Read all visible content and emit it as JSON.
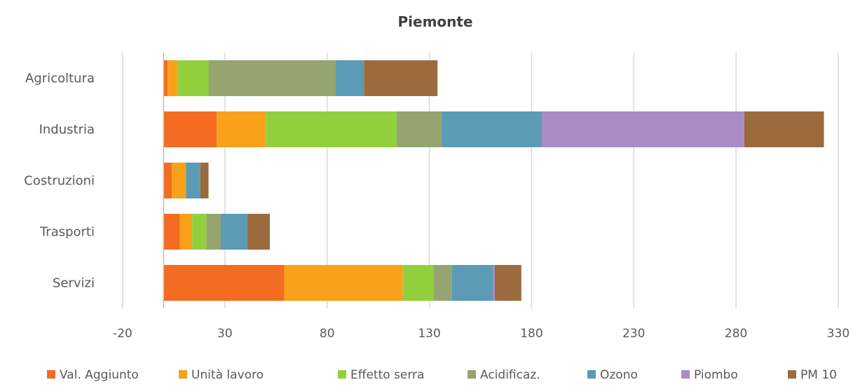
{
  "chart_data": {
    "type": "bar",
    "orientation": "horizontal",
    "stacked": true,
    "title": "Piemonte",
    "xlabel": "",
    "ylabel": "",
    "xlim": [
      -20,
      330
    ],
    "x_ticks": [
      -20,
      30,
      80,
      130,
      180,
      230,
      280,
      330
    ],
    "grid": true,
    "legend_position": "bottom",
    "categories": [
      "Agricoltura",
      "Industria",
      "Costruzioni",
      "Trasporti",
      "Servizi"
    ],
    "series": [
      {
        "name": "Val. Aggiunto",
        "color": "#F36C21",
        "values": [
          2,
          26,
          4,
          8,
          59
        ]
      },
      {
        "name": "Unità lavoro",
        "color": "#F9A11B",
        "values": [
          5,
          24,
          7,
          6,
          58
        ]
      },
      {
        "name": "Effetto serra",
        "color": "#92CF3C",
        "values": [
          15,
          64,
          0,
          7,
          15
        ]
      },
      {
        "name": "Acidificaz.",
        "color": "#96A470",
        "values": [
          62,
          22,
          0,
          7,
          9
        ]
      },
      {
        "name": "Ozono",
        "color": "#5B9BB5",
        "values": [
          14,
          49,
          7,
          13,
          20
        ]
      },
      {
        "name": "Piombo",
        "color": "#A98BC5",
        "values": [
          0,
          99,
          0,
          0,
          1
        ]
      },
      {
        "name": "PM 10",
        "color": "#9C6B3D",
        "values": [
          36,
          39,
          4,
          11,
          13
        ]
      }
    ]
  }
}
